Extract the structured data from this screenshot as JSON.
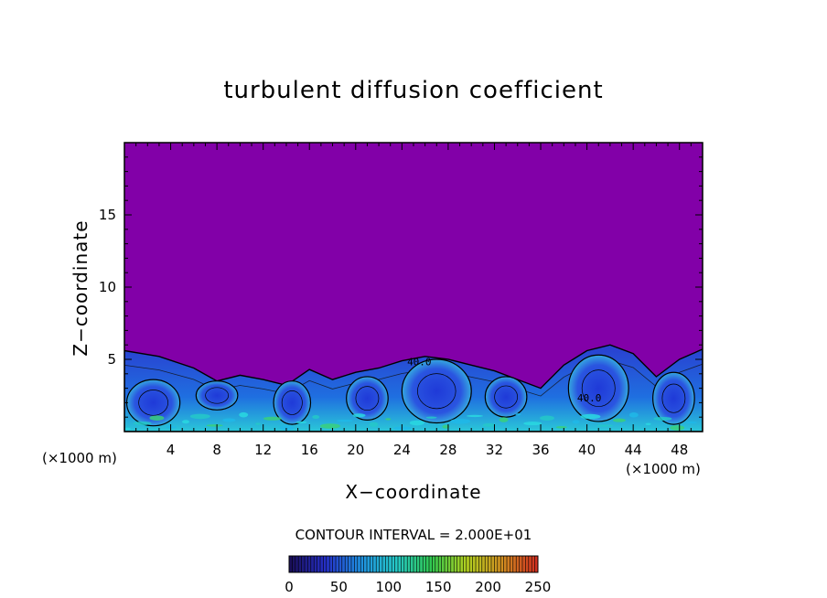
{
  "colors": {
    "background": "#8200a8",
    "frame": "#000000",
    "colorbar_stops": [
      "#1a0f5a",
      "#2530c8",
      "#1f90e0",
      "#25c8c8",
      "#30c850",
      "#b0d020",
      "#d09020",
      "#d03020"
    ]
  },
  "chart_data": {
    "type": "heatmap",
    "title": "turbulent diffusion coefficient",
    "xlabel": "X−coordinate",
    "ylabel": "Z−coordinate",
    "x_unit_left": "(×1000 m)",
    "x_unit_right": "(×1000 m)",
    "xlim": [
      0,
      50
    ],
    "ylim": [
      0,
      20
    ],
    "x_ticks": [
      4,
      8,
      12,
      16,
      20,
      24,
      28,
      32,
      36,
      40,
      44,
      48
    ],
    "x_tick_labels": [
      "4",
      "8",
      "12",
      "16",
      "20",
      "24",
      "28",
      "32",
      "36",
      "40",
      "44",
      "48"
    ],
    "y_ticks": [
      5,
      10,
      15
    ],
    "y_tick_labels": [
      "5",
      "10",
      "15"
    ],
    "contour_interval_text": "CONTOUR INTERVAL = 2.000E+01",
    "contour_labels": [
      "40.0",
      "40.0"
    ],
    "colorbar": {
      "min": 0,
      "max": 250,
      "ticks": [
        0,
        50,
        100,
        150,
        200,
        250
      ],
      "tick_labels": [
        "0",
        "50",
        "100",
        "150",
        "200",
        "250"
      ]
    },
    "turbulent_layer_top_km": [
      [
        0,
        5.6
      ],
      [
        3,
        5.2
      ],
      [
        6,
        4.4
      ],
      [
        8,
        3.5
      ],
      [
        10,
        3.9
      ],
      [
        12,
        3.6
      ],
      [
        14,
        3.2
      ],
      [
        16,
        4.3
      ],
      [
        18,
        3.6
      ],
      [
        20,
        4.1
      ],
      [
        22,
        4.4
      ],
      [
        24,
        4.9
      ],
      [
        26,
        5.2
      ],
      [
        28,
        5.0
      ],
      [
        30,
        4.6
      ],
      [
        32,
        4.2
      ],
      [
        34,
        3.6
      ],
      [
        36,
        3.0
      ],
      [
        38,
        4.6
      ],
      [
        40,
        5.6
      ],
      [
        42,
        6.0
      ],
      [
        44,
        5.4
      ],
      [
        46,
        3.8
      ],
      [
        48,
        5.0
      ],
      [
        50,
        5.7
      ]
    ],
    "eddies": [
      {
        "x": 2.5,
        "z": 2.0,
        "rx": 2.3,
        "rz": 1.6
      },
      {
        "x": 8.0,
        "z": 2.5,
        "rx": 1.8,
        "rz": 1.0
      },
      {
        "x": 14.5,
        "z": 2.0,
        "rx": 1.6,
        "rz": 1.5
      },
      {
        "x": 21.0,
        "z": 2.3,
        "rx": 1.8,
        "rz": 1.5
      },
      {
        "x": 27.0,
        "z": 2.8,
        "rx": 3.0,
        "rz": 2.2
      },
      {
        "x": 33.0,
        "z": 2.4,
        "rx": 1.8,
        "rz": 1.4
      },
      {
        "x": 41.0,
        "z": 3.0,
        "rx": 2.6,
        "rz": 2.3
      },
      {
        "x": 47.5,
        "z": 2.3,
        "rx": 1.8,
        "rz": 1.8
      }
    ]
  }
}
